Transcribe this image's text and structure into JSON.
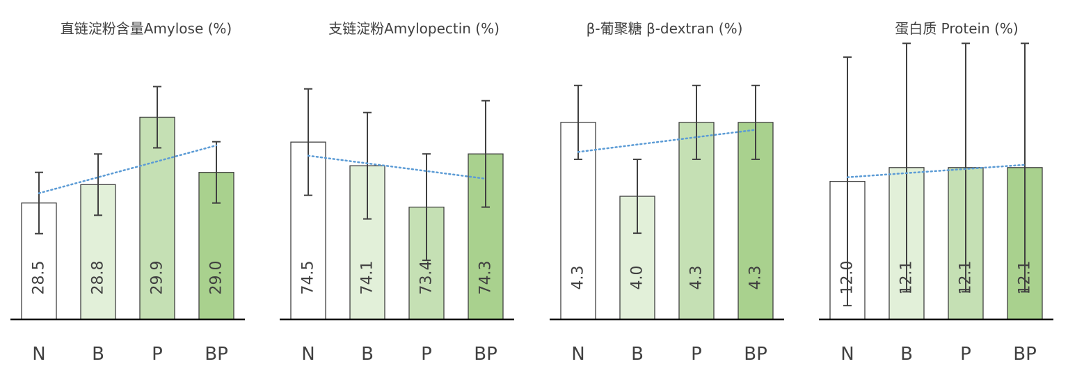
{
  "palette": {
    "bar_fills": [
      "#ffffff",
      "#e2f0d9",
      "#c5e0b4",
      "#a9d18e"
    ],
    "bar_stroke": "#404040",
    "error_bar": "#404040",
    "trendline": "#5b9bd5",
    "axis": "#000000",
    "text": "#404040"
  },
  "chart_data": [
    {
      "type": "bar",
      "title": "直链淀粉含量Amylose (%)",
      "categories": [
        "N",
        "B",
        "P",
        "BP"
      ],
      "values": [
        28.5,
        28.8,
        29.9,
        29.0
      ],
      "value_labels": [
        "28.5",
        "28.8",
        "29.9",
        "29.0"
      ],
      "error": [
        0.5,
        0.5,
        0.5,
        0.5
      ],
      "ylim": [
        26.6,
        30.7
      ],
      "trendline": "linear-dotted",
      "gridlines": false,
      "y_axis_visible": false
    },
    {
      "type": "bar",
      "title": "支链淀粉Amylopectin (%)",
      "categories": [
        "N",
        "B",
        "P",
        "BP"
      ],
      "values": [
        74.5,
        74.1,
        73.4,
        74.3
      ],
      "value_labels": [
        "74.5",
        "74.1",
        "73.4",
        "74.3"
      ],
      "error": [
        0.9,
        0.9,
        0.9,
        0.9
      ],
      "ylim": [
        71.5,
        75.75
      ],
      "trendline": "linear-dotted",
      "gridlines": false,
      "y_axis_visible": false
    },
    {
      "type": "bar",
      "title": "β-葡聚糖 β-dextran (%)",
      "categories": [
        "N",
        "B",
        "P",
        "BP"
      ],
      "values": [
        4.3,
        4.0,
        4.3,
        4.3
      ],
      "value_labels": [
        "4.3",
        "4.0",
        "4.3",
        "4.3"
      ],
      "error": [
        0.15,
        0.15,
        0.15,
        0.15
      ],
      "ylim": [
        3.5,
        4.52
      ],
      "trendline": "linear-dotted",
      "gridlines": false,
      "y_axis_visible": false
    },
    {
      "type": "bar",
      "title": "蛋白质 Protein (%)",
      "categories": [
        "N",
        "B",
        "P",
        "BP"
      ],
      "values": [
        12.0,
        12.1,
        12.1,
        12.1
      ],
      "value_labels": [
        "12.0",
        "12.1",
        "12.1",
        "12.1"
      ],
      "error": [
        0.9,
        0.9,
        0.9,
        0.9
      ],
      "ylim": [
        11.0,
        12.82
      ],
      "trendline": "linear-dotted",
      "gridlines": false,
      "y_axis_visible": false
    }
  ]
}
